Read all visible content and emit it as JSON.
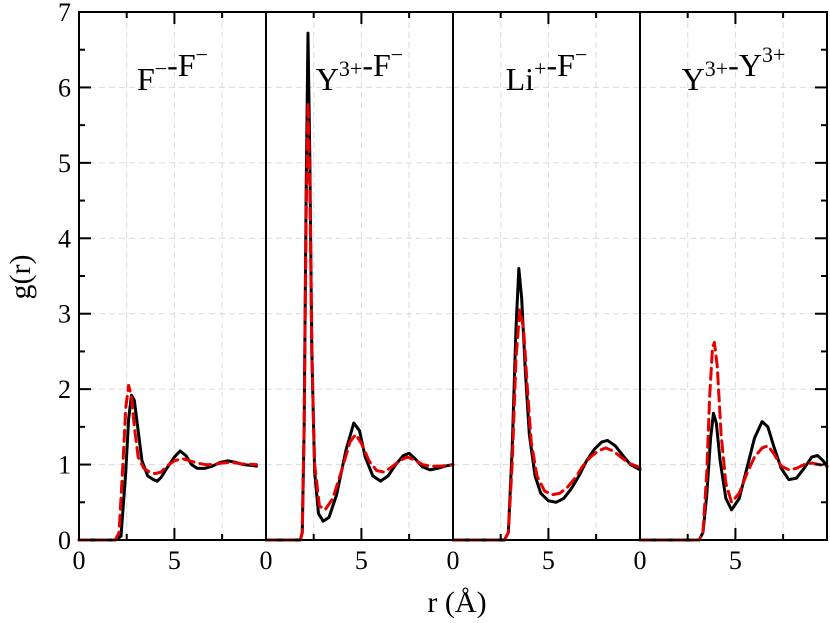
{
  "chart_data": {
    "type": "line",
    "xlabel": "r (Å)",
    "ylabel": "g(r)",
    "ylim": [
      0,
      7
    ],
    "y_ticks": [
      0,
      1,
      2,
      3,
      4,
      5,
      6,
      7
    ],
    "x_ticks": [
      0,
      5
    ],
    "grid": true,
    "series_styles": [
      {
        "color": "#000000",
        "style": "solid"
      },
      {
        "color": "#e60000",
        "style": "dashed"
      }
    ],
    "panels": [
      {
        "title_parts": [
          {
            "text": "F",
            "sup": "−"
          },
          {
            "text": "-F",
            "sup": "−"
          }
        ],
        "xlim": [
          0,
          9.8
        ],
        "series": [
          {
            "values": [
              [
                0,
                0
              ],
              [
                1.9,
                0
              ],
              [
                2.2,
                0.05
              ],
              [
                2.45,
                0.9
              ],
              [
                2.6,
                1.6
              ],
              [
                2.75,
                1.92
              ],
              [
                2.9,
                1.85
              ],
              [
                3.1,
                1.45
              ],
              [
                3.3,
                1.05
              ],
              [
                3.6,
                0.85
              ],
              [
                3.9,
                0.8
              ],
              [
                4.1,
                0.78
              ],
              [
                4.3,
                0.83
              ],
              [
                4.6,
                0.95
              ],
              [
                5.0,
                1.1
              ],
              [
                5.3,
                1.18
              ],
              [
                5.6,
                1.12
              ],
              [
                5.9,
                1.0
              ],
              [
                6.2,
                0.95
              ],
              [
                6.6,
                0.95
              ],
              [
                7.0,
                0.98
              ],
              [
                7.4,
                1.03
              ],
              [
                7.8,
                1.05
              ],
              [
                8.2,
                1.03
              ],
              [
                8.6,
                1.0
              ],
              [
                9.3,
                0.98
              ]
            ]
          },
          {
            "values": [
              [
                0,
                0
              ],
              [
                1.9,
                0
              ],
              [
                2.1,
                0.1
              ],
              [
                2.3,
                1.0
              ],
              [
                2.45,
                1.75
              ],
              [
                2.6,
                2.05
              ],
              [
                2.75,
                1.9
              ],
              [
                2.9,
                1.5
              ],
              [
                3.1,
                1.1
              ],
              [
                3.4,
                0.95
              ],
              [
                3.7,
                0.9
              ],
              [
                4.0,
                0.88
              ],
              [
                4.3,
                0.9
              ],
              [
                4.6,
                0.98
              ],
              [
                5.0,
                1.05
              ],
              [
                5.4,
                1.08
              ],
              [
                5.8,
                1.05
              ],
              [
                6.2,
                1.02
              ],
              [
                6.6,
                1.0
              ],
              [
                7.0,
                1.0
              ],
              [
                7.5,
                1.02
              ],
              [
                8.0,
                1.03
              ],
              [
                8.5,
                1.01
              ],
              [
                9.3,
                1.0
              ]
            ]
          }
        ]
      },
      {
        "title_parts": [
          {
            "text": "Y",
            "sup": "3+"
          },
          {
            "text": "-F",
            "sup": "−"
          }
        ],
        "xlim": [
          0,
          9.8
        ],
        "series": [
          {
            "values": [
              [
                0,
                0
              ],
              [
                1.8,
                0
              ],
              [
                1.9,
                0.1
              ],
              [
                2.0,
                1.5
              ],
              [
                2.1,
                4.5
              ],
              [
                2.2,
                6.72
              ],
              [
                2.3,
                5.0
              ],
              [
                2.4,
                2.5
              ],
              [
                2.55,
                0.9
              ],
              [
                2.75,
                0.35
              ],
              [
                3.0,
                0.25
              ],
              [
                3.3,
                0.3
              ],
              [
                3.7,
                0.6
              ],
              [
                4.2,
                1.2
              ],
              [
                4.6,
                1.55
              ],
              [
                4.9,
                1.45
              ],
              [
                5.2,
                1.1
              ],
              [
                5.6,
                0.85
              ],
              [
                6.0,
                0.78
              ],
              [
                6.4,
                0.85
              ],
              [
                6.8,
                1.0
              ],
              [
                7.2,
                1.12
              ],
              [
                7.5,
                1.15
              ],
              [
                7.8,
                1.08
              ],
              [
                8.2,
                0.97
              ],
              [
                8.6,
                0.93
              ],
              [
                9.0,
                0.95
              ],
              [
                9.4,
                0.98
              ],
              [
                9.8,
                1.0
              ]
            ]
          },
          {
            "values": [
              [
                0,
                0
              ],
              [
                1.8,
                0
              ],
              [
                1.9,
                0.1
              ],
              [
                2.0,
                1.5
              ],
              [
                2.1,
                4.2
              ],
              [
                2.2,
                5.8
              ],
              [
                2.3,
                4.7
              ],
              [
                2.4,
                2.5
              ],
              [
                2.55,
                1.0
              ],
              [
                2.8,
                0.45
              ],
              [
                3.1,
                0.4
              ],
              [
                3.5,
                0.55
              ],
              [
                4.0,
                0.95
              ],
              [
                4.4,
                1.3
              ],
              [
                4.7,
                1.4
              ],
              [
                5.0,
                1.28
              ],
              [
                5.4,
                1.05
              ],
              [
                5.8,
                0.92
              ],
              [
                6.2,
                0.9
              ],
              [
                6.6,
                0.97
              ],
              [
                7.0,
                1.05
              ],
              [
                7.4,
                1.1
              ],
              [
                7.8,
                1.06
              ],
              [
                8.2,
                1.0
              ],
              [
                8.6,
                0.98
              ],
              [
                9.2,
                0.98
              ],
              [
                9.8,
                1.0
              ]
            ]
          }
        ]
      },
      {
        "title_parts": [
          {
            "text": "Li",
            "sup": "+"
          },
          {
            "text": "-F",
            "sup": "−"
          }
        ],
        "xlim": [
          0,
          9.8
        ],
        "series": [
          {
            "values": [
              [
                0,
                0
              ],
              [
                2.7,
                0
              ],
              [
                2.9,
                0.1
              ],
              [
                3.1,
                1.2
              ],
              [
                3.3,
                2.8
              ],
              [
                3.45,
                3.6
              ],
              [
                3.6,
                3.2
              ],
              [
                3.8,
                2.2
              ],
              [
                4.0,
                1.4
              ],
              [
                4.3,
                0.85
              ],
              [
                4.6,
                0.62
              ],
              [
                5.0,
                0.52
              ],
              [
                5.4,
                0.5
              ],
              [
                5.8,
                0.55
              ],
              [
                6.2,
                0.68
              ],
              [
                6.6,
                0.85
              ],
              [
                7.0,
                1.05
              ],
              [
                7.4,
                1.2
              ],
              [
                7.8,
                1.3
              ],
              [
                8.1,
                1.32
              ],
              [
                8.5,
                1.25
              ],
              [
                8.9,
                1.12
              ],
              [
                9.3,
                1.0
              ],
              [
                9.8,
                0.93
              ]
            ]
          },
          {
            "values": [
              [
                0,
                0
              ],
              [
                2.7,
                0
              ],
              [
                2.9,
                0.1
              ],
              [
                3.1,
                1.0
              ],
              [
                3.3,
                2.4
              ],
              [
                3.5,
                3.05
              ],
              [
                3.7,
                2.8
              ],
              [
                3.9,
                2.0
              ],
              [
                4.1,
                1.3
              ],
              [
                4.4,
                0.85
              ],
              [
                4.8,
                0.65
              ],
              [
                5.2,
                0.6
              ],
              [
                5.6,
                0.62
              ],
              [
                6.0,
                0.7
              ],
              [
                6.4,
                0.82
              ],
              [
                6.8,
                0.98
              ],
              [
                7.2,
                1.1
              ],
              [
                7.6,
                1.18
              ],
              [
                8.0,
                1.22
              ],
              [
                8.4,
                1.18
              ],
              [
                8.8,
                1.1
              ],
              [
                9.2,
                1.02
              ],
              [
                9.8,
                0.96
              ]
            ]
          }
        ]
      },
      {
        "title_parts": [
          {
            "text": "Y",
            "sup": "3+"
          },
          {
            "text": "-Y",
            "sup": "3+"
          }
        ],
        "xlim": [
          0,
          9.8
        ],
        "series": [
          {
            "values": [
              [
                0,
                0
              ],
              [
                3.1,
                0
              ],
              [
                3.3,
                0.1
              ],
              [
                3.5,
                0.6
              ],
              [
                3.7,
                1.35
              ],
              [
                3.85,
                1.68
              ],
              [
                4.0,
                1.55
              ],
              [
                4.2,
                1.05
              ],
              [
                4.5,
                0.55
              ],
              [
                4.8,
                0.4
              ],
              [
                5.2,
                0.55
              ],
              [
                5.6,
                0.95
              ],
              [
                6.0,
                1.35
              ],
              [
                6.4,
                1.57
              ],
              [
                6.7,
                1.5
              ],
              [
                7.0,
                1.25
              ],
              [
                7.4,
                0.95
              ],
              [
                7.8,
                0.8
              ],
              [
                8.2,
                0.82
              ],
              [
                8.6,
                0.95
              ],
              [
                9.0,
                1.1
              ],
              [
                9.3,
                1.12
              ],
              [
                9.6,
                1.05
              ],
              [
                9.8,
                0.98
              ]
            ]
          },
          {
            "values": [
              [
                0,
                0
              ],
              [
                3.1,
                0
              ],
              [
                3.3,
                0.1
              ],
              [
                3.5,
                0.9
              ],
              [
                3.65,
                1.9
              ],
              [
                3.8,
                2.55
              ],
              [
                3.9,
                2.62
              ],
              [
                4.05,
                2.3
              ],
              [
                4.25,
                1.4
              ],
              [
                4.5,
                0.75
              ],
              [
                4.8,
                0.5
              ],
              [
                5.2,
                0.62
              ],
              [
                5.6,
                0.88
              ],
              [
                6.0,
                1.1
              ],
              [
                6.4,
                1.22
              ],
              [
                6.7,
                1.25
              ],
              [
                7.0,
                1.15
              ],
              [
                7.4,
                0.98
              ],
              [
                7.8,
                0.93
              ],
              [
                8.2,
                0.95
              ],
              [
                8.6,
                1.0
              ],
              [
                9.0,
                1.02
              ],
              [
                9.4,
                1.0
              ],
              [
                9.8,
                0.97
              ]
            ]
          }
        ]
      }
    ]
  }
}
